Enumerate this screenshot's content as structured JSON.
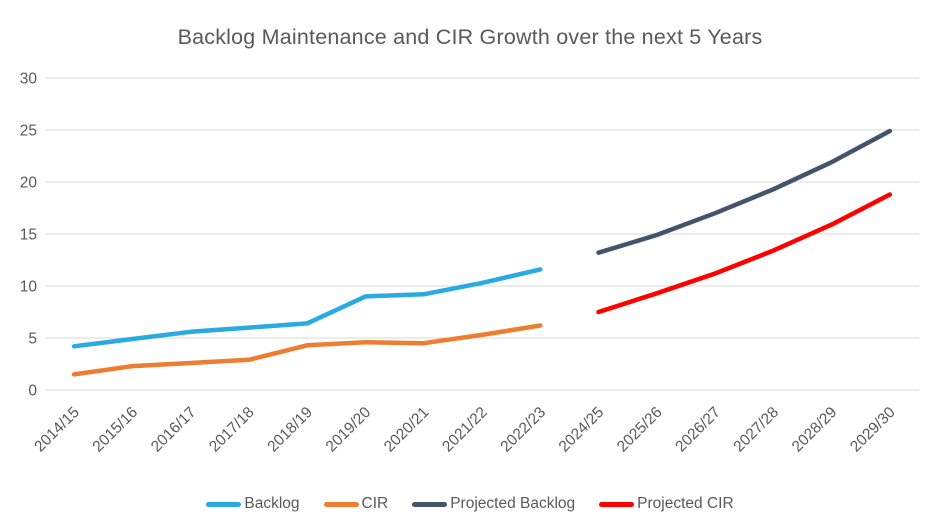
{
  "title": "Backlog Maintenance and CIR Growth over the next 5 Years",
  "colors": {
    "text": "#595959",
    "gridline": "#d9d9d9",
    "background": "#ffffff"
  },
  "chart_data": {
    "type": "line",
    "title": "Backlog Maintenance and CIR Growth over the next 5 Years",
    "categories": [
      "2014/15",
      "2015/16",
      "2016/17",
      "2017/18",
      "2018/19",
      "2019/20",
      "2020/21",
      "2021/22",
      "2022/23",
      "2024/25",
      "2025/26",
      "2026/27",
      "2027/28",
      "2028/29",
      "2029/30"
    ],
    "series": [
      {
        "name": "Backlog",
        "color": "#29abe2",
        "values": [
          4.2,
          4.9,
          5.6,
          6.0,
          6.4,
          9.0,
          9.2,
          10.3,
          11.6,
          null,
          null,
          null,
          null,
          null,
          null
        ]
      },
      {
        "name": "CIR",
        "color": "#ed7d31",
        "values": [
          1.5,
          2.3,
          2.6,
          2.9,
          4.3,
          4.6,
          4.5,
          5.3,
          6.2,
          null,
          null,
          null,
          null,
          null,
          null
        ]
      },
      {
        "name": "Projected Backlog",
        "color": "#44546a",
        "values": [
          null,
          null,
          null,
          null,
          null,
          null,
          null,
          null,
          null,
          13.2,
          14.9,
          17.0,
          19.3,
          21.9,
          24.9
        ]
      },
      {
        "name": "Projected CIR",
        "color": "#ff0000",
        "values": [
          null,
          null,
          null,
          null,
          null,
          null,
          null,
          null,
          null,
          7.5,
          9.3,
          11.2,
          13.4,
          15.9,
          18.8
        ]
      }
    ],
    "xlabel": "",
    "ylabel": "",
    "ylim": [
      0,
      30
    ],
    "yticks": [
      0,
      5,
      10,
      15,
      20,
      25,
      30
    ],
    "grid": true,
    "legend_position": "bottom",
    "x_label_rotation_deg": -45
  }
}
